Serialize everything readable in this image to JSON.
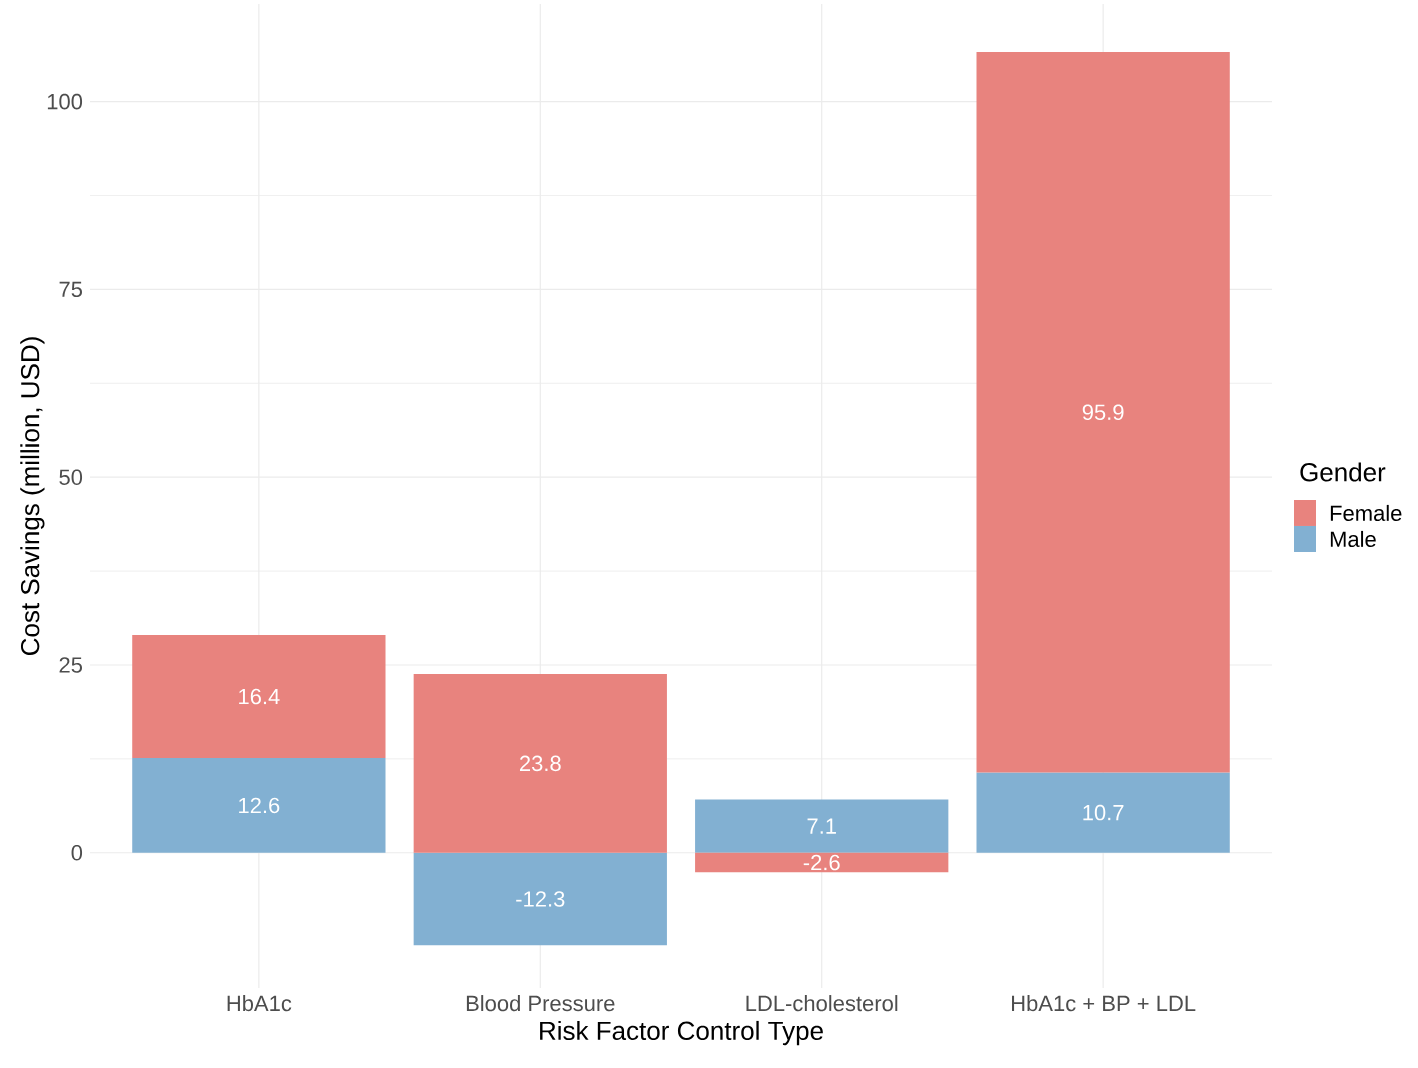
{
  "chart_data": {
    "type": "bar",
    "stacked": true,
    "xlabel": "Risk Factor Control Type",
    "ylabel": "Cost Savings (million, USD)",
    "legend_title": "Gender",
    "categories": [
      "HbA1c",
      "Blood Pressure",
      "LDL-cholesterol",
      "HbA1c + BP + LDL"
    ],
    "series": [
      {
        "name": "Male",
        "color": "#82b0d2",
        "values": [
          12.6,
          -12.3,
          7.1,
          10.7
        ]
      },
      {
        "name": "Female",
        "color": "#e8837e",
        "values": [
          16.4,
          23.8,
          -2.6,
          95.9
        ]
      }
    ],
    "ylim": [
      -18,
      113
    ],
    "yticks": [
      0,
      25,
      50,
      75,
      100
    ],
    "grid": true,
    "legend": "right",
    "data_labels": true
  }
}
